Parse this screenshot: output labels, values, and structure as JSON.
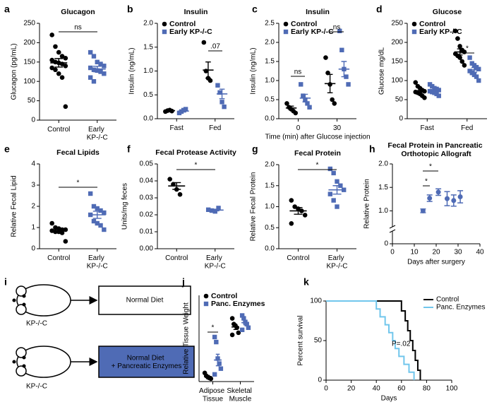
{
  "chart_data": [
    {
      "label": "a",
      "type": "dot",
      "title": "Glucagon",
      "ylabel": "Glucagon (pg/mL)",
      "categories": [
        "Control",
        "Early KP-/-C"
      ],
      "ylim": [
        0,
        250
      ],
      "yticks": [
        0,
        50,
        100,
        150,
        200,
        250
      ],
      "series": [
        {
          "colors": [
            "#000000",
            "#4f6bb5"
          ],
          "markers": [
            "circle",
            "square"
          ],
          "points": [
            [
              220,
              190,
              175,
              165,
              160,
              155,
              150,
              148,
              145,
              140,
              135,
              130,
              120,
              110,
              35
            ],
            [
              175,
              165,
              150,
              145,
              140,
              135,
              130,
              128,
              125,
              120,
              110,
              100
            ]
          ],
          "mean": [
            148,
            132
          ],
          "sem": [
            11,
            7
          ]
        }
      ],
      "annotations": [
        "ns"
      ]
    },
    {
      "label": "b",
      "type": "dot",
      "title": "Insulin",
      "ylabel": "Insulin (ng/mL)",
      "categories": [
        "Fast",
        "Fed"
      ],
      "ylim": [
        0,
        2
      ],
      "yticks": [
        {
          "value": 0,
          "label": "0.0"
        },
        0.5,
        {
          "value": 1,
          "label": "1.0"
        },
        1.5,
        {
          "value": 2,
          "label": "2.0"
        }
      ],
      "legend": "upper left",
      "series": [
        {
          "name": "Control",
          "color": "#000000",
          "marker": "circle",
          "points": [
            [
              0.15,
              0.17,
              0.18,
              0.16
            ],
            [
              1.6,
              1.0,
              0.85,
              0.8
            ]
          ],
          "mean": [
            0.17,
            1.02
          ],
          "sem": [
            0.01,
            0.17
          ]
        },
        {
          "name": "Early KP-/-C",
          "color": "#4f6bb5",
          "marker": "square",
          "points": [
            [
              0.12,
              0.15,
              0.18,
              0.2
            ],
            [
              0.7,
              0.55,
              0.35,
              0.25
            ]
          ],
          "mean": [
            0.16,
            0.52
          ],
          "sem": [
            0.02,
            0.1
          ]
        }
      ],
      "annotations": [
        ".07"
      ]
    },
    {
      "label": "c",
      "type": "dot",
      "title": "Insulin",
      "ylabel": "Insulin (ng/mL)",
      "xlabel": "Time (min) after Glucose injection",
      "categories": [
        "0",
        "30"
      ],
      "ylim": [
        0,
        2.5
      ],
      "yticks": [
        {
          "value": 0,
          "label": "0.0"
        },
        0.5,
        {
          "value": 1,
          "label": "1.0"
        },
        1.5,
        {
          "value": 2,
          "label": "2.0"
        },
        2.5
      ],
      "legend": "upper left",
      "series": [
        {
          "name": "Control",
          "color": "#000000",
          "marker": "circle",
          "points": [
            [
              0.4,
              0.3,
              0.25,
              0.2,
              0.15
            ],
            [
              1.6,
              1.2,
              0.9,
              0.5,
              0.4
            ]
          ],
          "mean": [
            0.28,
            0.92
          ],
          "sem": [
            0.05,
            0.24
          ]
        },
        {
          "name": "Early KP-/-C",
          "color": "#4f6bb5",
          "marker": "square",
          "points": [
            [
              0.9,
              0.6,
              0.5,
              0.4,
              0.3
            ],
            [
              2.3,
              1.8,
              1.3,
              1.1,
              0.9
            ]
          ],
          "mean": [
            0.54,
            1.3
          ],
          "sem": [
            0.1,
            0.2
          ]
        }
      ],
      "annotations": [
        "ns",
        "ns"
      ]
    },
    {
      "label": "d",
      "type": "dot",
      "title": "Glucose",
      "ylabel": "Glucose mg/dL",
      "categories": [
        "Fast",
        "Fed"
      ],
      "ylim": [
        0,
        250
      ],
      "yticks": [
        0,
        50,
        100,
        150,
        200,
        250
      ],
      "legend": "upper left",
      "series": [
        {
          "name": "Control",
          "color": "#000000",
          "marker": "circle",
          "points": [
            [
              95,
              85,
              80,
              75,
              72,
              70,
              68,
              65,
              60,
              55
            ],
            [
              230,
              210,
              190,
              180,
              175,
              170,
              165,
              160,
              150,
              140
            ]
          ],
          "mean": [
            70,
            175
          ],
          "sem": [
            4,
            8
          ]
        },
        {
          "name": "Early KP-/-C",
          "color": "#4f6bb5",
          "marker": "square",
          "points": [
            [
              90,
              85,
              80,
              78,
              75,
              72,
              70,
              68,
              65,
              60
            ],
            [
              160,
              145,
              140,
              135,
              130,
              125,
              120,
              115,
              110,
              100
            ]
          ],
          "mean": [
            72,
            128
          ],
          "sem": [
            3,
            6
          ]
        }
      ],
      "annotations": [
        "*"
      ]
    },
    {
      "label": "e",
      "type": "dot",
      "title": "Fecal Lipids",
      "ylabel": "Relative Fecal Lipid",
      "categories": [
        "Control",
        "Early KP-/-C"
      ],
      "ylim": [
        0,
        4
      ],
      "yticks": [
        0,
        1,
        2,
        3,
        4
      ],
      "series": [
        {
          "colors": [
            "#000000",
            "#4f6bb5"
          ],
          "markers": [
            "circle",
            "square"
          ],
          "points": [
            [
              1.2,
              1.0,
              0.95,
              0.9,
              0.9,
              0.85,
              0.8,
              0.8,
              0.75,
              0.35
            ],
            [
              2.6,
              2.0,
              1.9,
              1.8,
              1.7,
              1.6,
              1.3,
              1.2,
              1.1,
              0.9
            ]
          ],
          "mean": [
            0.85,
            1.6
          ],
          "sem": [
            0.07,
            0.17
          ]
        }
      ],
      "annotations": [
        "*"
      ]
    },
    {
      "label": "f",
      "type": "dot",
      "title": "Fecal Protease Activity",
      "ylabel": "Units/mg feces",
      "categories": [
        "Control",
        "Early KP-/-C"
      ],
      "ylim": [
        0,
        0.05
      ],
      "yticks": [
        {
          "value": 0,
          "label": "0.00"
        },
        0.01,
        0.02,
        0.03,
        0.04,
        0.05
      ],
      "series": [
        {
          "colors": [
            "#000000",
            "#4f6bb5"
          ],
          "markers": [
            "circle",
            "square"
          ],
          "points": [
            [
              0.041,
              0.038,
              0.035,
              0.032
            ],
            [
              0.023,
              0.0225,
              0.022,
              0.024
            ]
          ],
          "mean": [
            0.037,
            0.0228
          ],
          "sem": [
            0.002,
            0.0005
          ]
        }
      ],
      "annotations": [
        "*"
      ]
    },
    {
      "label": "g",
      "type": "dot",
      "title": "Fecal Protein",
      "ylabel": "Relative Fecal Protein",
      "categories": [
        "Control",
        "Early KP-/-C"
      ],
      "ylim": [
        0,
        2
      ],
      "yticks": [
        {
          "value": 0,
          "label": "0.0"
        },
        0.5,
        {
          "value": 1,
          "label": "1.0"
        },
        1.5,
        {
          "value": 2,
          "label": "2.0"
        }
      ],
      "series": [
        {
          "colors": [
            "#000000",
            "#4f6bb5"
          ],
          "markers": [
            "circle",
            "square"
          ],
          "points": [
            [
              1.15,
              1.0,
              0.95,
              0.9,
              0.8,
              0.6
            ],
            [
              1.9,
              1.8,
              1.6,
              1.5,
              1.4,
              1.3,
              1.15,
              1.0
            ]
          ],
          "mean": [
            0.9,
            1.4
          ],
          "sem": [
            0.08,
            0.1
          ]
        }
      ],
      "annotations": [
        "*"
      ]
    },
    {
      "label": "h",
      "type": "scatter",
      "title": "Fecal Protein in Pancreatic Orthotopic Allograft",
      "ylabel": "Relative Protein",
      "xlabel": "Days after surgery",
      "xlim": [
        0,
        40
      ],
      "xticks": [
        0,
        10,
        20,
        30,
        40
      ],
      "ylim": [
        0.75,
        2
      ],
      "yticks": [
        0,
        {
          "value": 1,
          "label": "1.0"
        },
        1.5,
        {
          "value": 2,
          "label": "2.0"
        }
      ],
      "series": [
        {
          "color": "#4f6bb5",
          "x": [
            14,
            17,
            21,
            25,
            28,
            31
          ],
          "values": [
            1.0,
            1.27,
            1.4,
            1.26,
            1.22,
            1.3
          ],
          "sem": [
            0.04,
            0.07,
            0.07,
            0.15,
            0.12,
            0.13
          ]
        }
      ],
      "annotations": [
        "*",
        "*"
      ]
    },
    {
      "label": "j",
      "type": "dot",
      "ylabel": "Relative Tissue Weight",
      "categories": [
        "Adipose Tissue",
        "Skeletal Muscle"
      ],
      "ylim": [
        0,
        12
      ],
      "legend": "upper left",
      "series": [
        {
          "name": "Control",
          "color": "#000000",
          "marker": "circle",
          "points": [
            [
              1.2,
              0.8,
              0.6,
              0.5,
              0.4
            ],
            [
              8.8,
              8.0,
              7.8,
              7.5,
              6.8,
              6.5
            ]
          ],
          "mean": [
            0.7,
            7.6
          ],
          "sem": [
            0.15,
            0.35
          ]
        },
        {
          "name": "Panc. Enzymes",
          "color": "#4f6bb5",
          "marker": "square",
          "points": [
            [
              6.2,
              5.5,
              3.2,
              2.5,
              1.8,
              1.0
            ],
            [
              9.2,
              8.8,
              8.3,
              8.0,
              7.5,
              7.2
            ]
          ],
          "mean": [
            3.0,
            8.2
          ],
          "sem": [
            0.8,
            0.3
          ]
        }
      ],
      "annotations": [
        "*"
      ]
    },
    {
      "label": "k",
      "type": "survival",
      "ylabel": "Percent survival",
      "xlabel": "Days",
      "xlim": [
        0,
        100
      ],
      "xticks": [
        0,
        20,
        40,
        60,
        80,
        100
      ],
      "ylim": [
        0,
        100
      ],
      "yticks": [
        0,
        50,
        100
      ],
      "legend": "upper right",
      "series": [
        {
          "name": "Control",
          "color": "#000000",
          "x": [
            0,
            60,
            63,
            65,
            67,
            69,
            71,
            73,
            75
          ],
          "values": [
            100,
            87.5,
            75,
            62.5,
            50,
            37.5,
            25,
            12.5,
            0
          ]
        },
        {
          "name": "Panc. Enzymes",
          "color": "#71c6ec",
          "x": [
            0,
            40,
            43,
            47,
            50,
            53,
            55,
            58,
            62,
            66,
            70
          ],
          "values": [
            100,
            90,
            80,
            70,
            60,
            50,
            40,
            30,
            20,
            10,
            0
          ]
        }
      ],
      "annotations": [
        "P=.02"
      ]
    }
  ],
  "diagram": {
    "label": "i",
    "boxes": [
      "Normal Diet",
      "Normal Diet + Pancreatic Enzymes"
    ],
    "mice": [
      "KP-/-C",
      "KP-/-C"
    ]
  }
}
